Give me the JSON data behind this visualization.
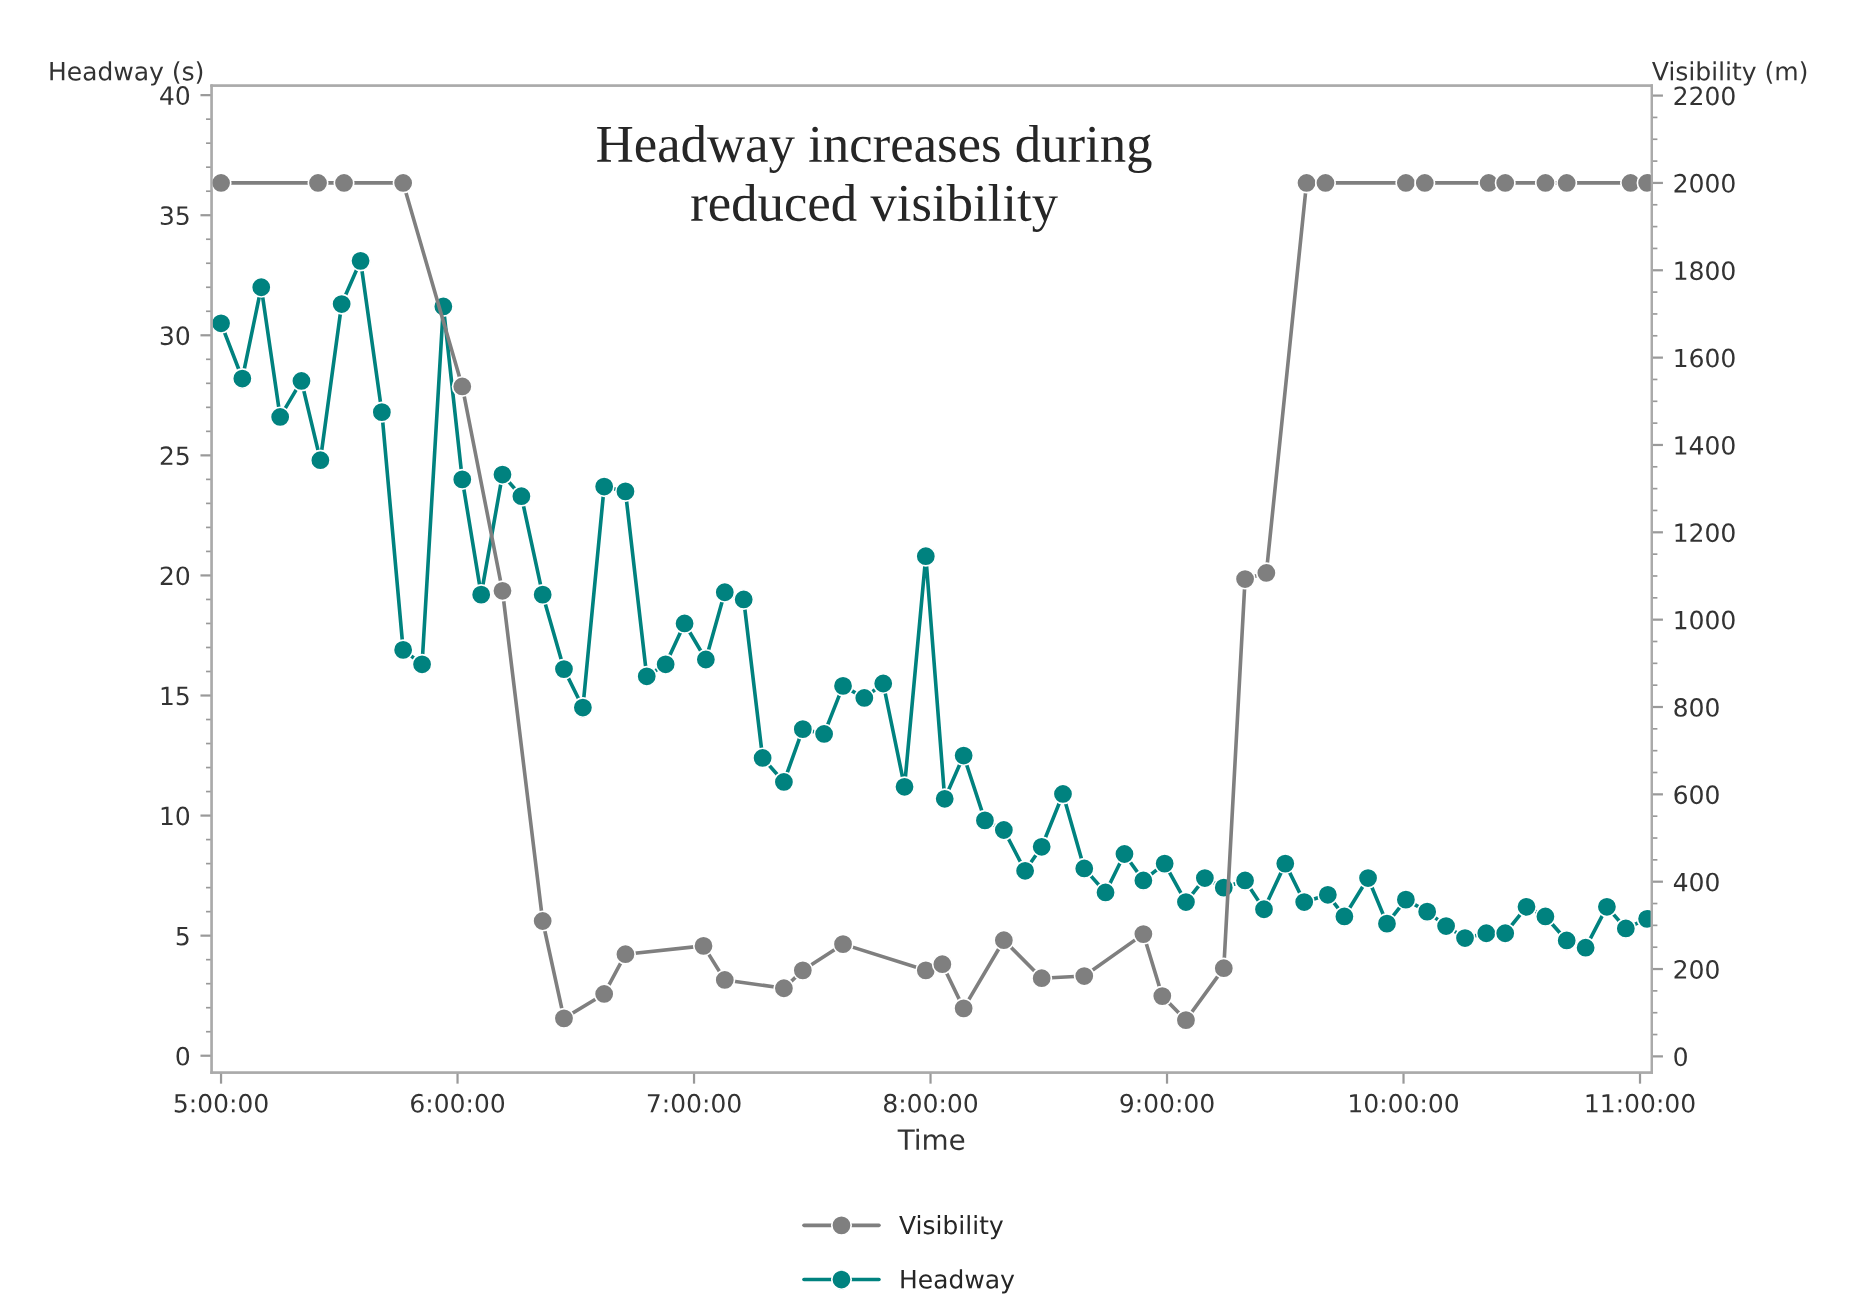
{
  "chart_data": {
    "type": "line",
    "xlabel": "Time",
    "ylabel": "Headway (s)",
    "y2label": "Visibility (m)",
    "annotations": [
      "Headway increases during\nreduced visibility"
    ],
    "xlim": [
      4.96,
      11.05
    ],
    "xticks": [
      {
        "value": 5,
        "label": "5:00:00"
      },
      {
        "value": 6,
        "label": "6:00:00"
      },
      {
        "value": 7,
        "label": "7:00:00"
      },
      {
        "value": 8,
        "label": "8:00:00"
      },
      {
        "value": 9,
        "label": "9:00:00"
      },
      {
        "value": 10,
        "label": "10:00:00"
      },
      {
        "value": 11,
        "label": "11:00:00"
      }
    ],
    "ylim": [
      -0.7,
      40.4
    ],
    "yticks": [
      0,
      5,
      10,
      15,
      20,
      25,
      30,
      35,
      40
    ],
    "y2lim": [
      -37,
      2223
    ],
    "y2ticks": [
      0,
      200,
      400,
      600,
      800,
      1000,
      1200,
      1400,
      1600,
      1800,
      2000,
      2200
    ],
    "marker": "circle",
    "line_style": "solid",
    "legend": "bottom",
    "grid": false,
    "series": [
      {
        "name": "Visibility",
        "color": "#7f7f7f",
        "axis": "y2",
        "x": [
          5.0,
          5.41,
          5.52,
          5.77,
          6.02,
          6.19,
          6.36,
          6.45,
          6.62,
          6.71,
          7.04,
          7.13,
          7.38,
          7.46,
          7.63,
          7.98,
          8.05,
          8.14,
          8.31,
          8.47,
          8.65,
          8.9,
          8.98,
          9.08,
          9.24,
          9.33,
          9.42,
          9.59,
          9.67,
          10.01,
          10.09,
          10.36,
          10.43,
          10.6,
          10.69,
          10.96,
          11.03
        ],
        "values": [
          2000,
          2000,
          2000,
          2000,
          1534,
          1066,
          310,
          87,
          143,
          234,
          253,
          175,
          156,
          197,
          257,
          197,
          211,
          110,
          266,
          179,
          184,
          280,
          138,
          83,
          202,
          1093,
          1107,
          2000,
          2000,
          2000,
          2000,
          2000,
          2000,
          2000,
          2000,
          2000,
          2000
        ]
      },
      {
        "name": "Headway",
        "color": "#00827f",
        "x": [
          5.0,
          5.09,
          5.17,
          5.25,
          5.34,
          5.42,
          5.51,
          5.59,
          5.68,
          5.77,
          5.85,
          5.94,
          6.02,
          6.1,
          6.19,
          6.27,
          6.36,
          6.45,
          6.53,
          6.62,
          6.71,
          6.8,
          6.88,
          6.96,
          7.05,
          7.13,
          7.21,
          7.29,
          7.38,
          7.46,
          7.55,
          7.63,
          7.72,
          7.8,
          7.89,
          7.98,
          8.06,
          8.14,
          8.23,
          8.31,
          8.4,
          8.47,
          8.56,
          8.65,
          8.74,
          8.82,
          8.9,
          8.99,
          9.08,
          9.16,
          9.24,
          9.33,
          9.41,
          9.5,
          9.58,
          9.68,
          9.75,
          9.85,
          9.93,
          10.01,
          10.1,
          10.18,
          10.26,
          10.35,
          10.43,
          10.52,
          10.6,
          10.69,
          10.77,
          10.86,
          10.94,
          11.03
        ],
        "values": [
          30.5,
          28.2,
          32.0,
          26.6,
          28.1,
          24.8,
          31.3,
          33.1,
          26.8,
          16.9,
          16.3,
          31.2,
          24.0,
          19.2,
          24.2,
          23.3,
          19.2,
          16.1,
          14.5,
          23.7,
          23.5,
          15.8,
          16.3,
          18.0,
          16.5,
          19.3,
          19.0,
          12.4,
          11.4,
          13.6,
          13.4,
          15.4,
          14.9,
          15.5,
          11.2,
          20.8,
          10.7,
          12.5,
          9.8,
          9.4,
          7.7,
          8.7,
          10.9,
          7.8,
          6.8,
          8.4,
          7.3,
          8.0,
          6.4,
          7.4,
          7.0,
          7.3,
          6.1,
          8.0,
          6.4,
          6.7,
          5.8,
          7.4,
          5.5,
          6.5,
          6.0,
          5.4,
          4.9,
          5.1,
          5.1,
          6.2,
          5.8,
          4.8,
          4.5,
          6.2,
          5.3,
          5.7
        ]
      }
    ]
  }
}
